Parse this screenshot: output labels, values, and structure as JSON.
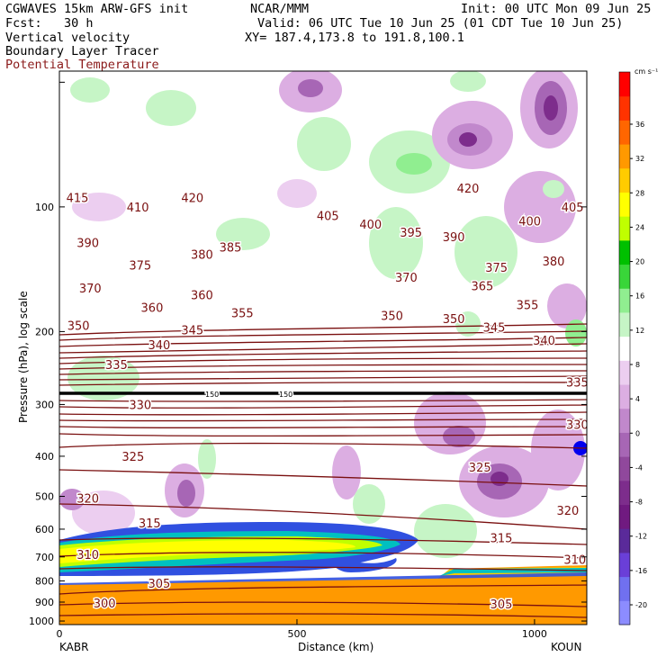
{
  "header": {
    "model": "CGWAVES 15km ARW-GFS init",
    "center": "NCAR/MMM",
    "init": "Init: 00 UTC Mon 09 Jun 25",
    "fcst": "Fcst:   30 h",
    "valid": "Valid: 06 UTC Tue 10 Jun 25 (01 CDT Tue 10 Jun 25)",
    "fields": [
      "Vertical velocity",
      "Boundary Layer Tracer",
      "Potential Temperature"
    ],
    "xy": "XY= 187.4,173.8 to 191.8,100.1"
  },
  "chart_data": {
    "type": "heatmap",
    "title": "CGWAVES 15km ARW-GFS init",
    "xlabel": "Distance (km)",
    "ylabel": "Pressure (hPa), log scale",
    "xlim": [
      0,
      1110
    ],
    "ylim": [
      1020,
      47
    ],
    "x_ticks": [
      0,
      500,
      1000
    ],
    "y_ticks": [
      100,
      200,
      300,
      400,
      500,
      600,
      700,
      800,
      900,
      1000
    ],
    "endpoints": {
      "left": "KABR",
      "right": "KOUN"
    },
    "colorbar": {
      "unit": "cm s⁻¹",
      "tick_labels": [
        "36",
        "32",
        "28",
        "24",
        "20",
        "16",
        "12",
        "8",
        "4",
        "0",
        "-4",
        "-8",
        "-12",
        "-16",
        "-20"
      ],
      "levels": [
        -22,
        -20,
        -18,
        -16,
        -14,
        -12,
        -10,
        -8,
        -6,
        -4,
        -2,
        2,
        4,
        8,
        12,
        16,
        20,
        24,
        28,
        32,
        36,
        40
      ],
      "colors": [
        "#8c8cff",
        "#7070f0",
        "#6a3fd8",
        "#5a2a9a",
        "#701a80",
        "#7d2d8c",
        "#90489c",
        "#a766b5",
        "#c188cc",
        "#dcaee2",
        "#eccef0",
        "#ffffff",
        "#c6f5c6",
        "#90ee90",
        "#39d639",
        "#00c000",
        "#c0ff00",
        "#ffff00",
        "#ffcc00",
        "#ff9900",
        "#ff6600",
        "#ff3300",
        "#ff0000"
      ]
    },
    "theta_labels": [
      {
        "v": "415",
        "x": 38,
        "p": 95
      },
      {
        "v": "410",
        "x": 165,
        "p": 100
      },
      {
        "v": "420",
        "x": 280,
        "p": 95
      },
      {
        "v": "405",
        "x": 565,
        "p": 105
      },
      {
        "v": "400",
        "x": 655,
        "p": 110
      },
      {
        "v": "395",
        "x": 740,
        "p": 115
      },
      {
        "v": "390",
        "x": 830,
        "p": 118
      },
      {
        "v": "420",
        "x": 860,
        "p": 90
      },
      {
        "v": "400",
        "x": 990,
        "p": 108
      },
      {
        "v": "405",
        "x": 1080,
        "p": 100
      },
      {
        "v": "390",
        "x": 60,
        "p": 122
      },
      {
        "v": "385",
        "x": 360,
        "p": 125
      },
      {
        "v": "380",
        "x": 300,
        "p": 130
      },
      {
        "v": "375",
        "x": 170,
        "p": 138
      },
      {
        "v": "375",
        "x": 920,
        "p": 140
      },
      {
        "v": "380",
        "x": 1040,
        "p": 135
      },
      {
        "v": "370",
        "x": 65,
        "p": 157
      },
      {
        "v": "365",
        "x": 890,
        "p": 155
      },
      {
        "v": "370",
        "x": 730,
        "p": 148
      },
      {
        "v": "360",
        "x": 300,
        "p": 163
      },
      {
        "v": "360",
        "x": 195,
        "p": 175
      },
      {
        "v": "355",
        "x": 385,
        "p": 180
      },
      {
        "v": "355",
        "x": 985,
        "p": 172
      },
      {
        "v": "350",
        "x": 700,
        "p": 183
      },
      {
        "v": "350",
        "x": 830,
        "p": 186
      },
      {
        "v": "345",
        "x": 915,
        "p": 195
      },
      {
        "v": "345",
        "x": 280,
        "p": 198
      },
      {
        "v": "350",
        "x": 40,
        "p": 193
      },
      {
        "v": "340",
        "x": 210,
        "p": 215
      },
      {
        "v": "340",
        "x": 1020,
        "p": 210
      },
      {
        "v": "335",
        "x": 120,
        "p": 240
      },
      {
        "v": "335",
        "x": 1090,
        "p": 265
      },
      {
        "v": "330",
        "x": 170,
        "p": 300
      },
      {
        "v": "330",
        "x": 1090,
        "p": 335
      },
      {
        "v": "325",
        "x": 155,
        "p": 400
      },
      {
        "v": "325",
        "x": 885,
        "p": 425
      },
      {
        "v": "320",
        "x": 60,
        "p": 505
      },
      {
        "v": "320",
        "x": 1070,
        "p": 540
      },
      {
        "v": "315",
        "x": 190,
        "p": 580
      },
      {
        "v": "315",
        "x": 930,
        "p": 630
      },
      {
        "v": "310",
        "x": 60,
        "p": 690
      },
      {
        "v": "310",
        "x": 1085,
        "p": 710
      },
      {
        "v": "305",
        "x": 210,
        "p": 810
      },
      {
        "v": "305",
        "x": 930,
        "p": 910
      },
      {
        "v": "300",
        "x": 95,
        "p": 905
      }
    ],
    "tropo_labels": [
      "150",
      "150"
    ]
  }
}
